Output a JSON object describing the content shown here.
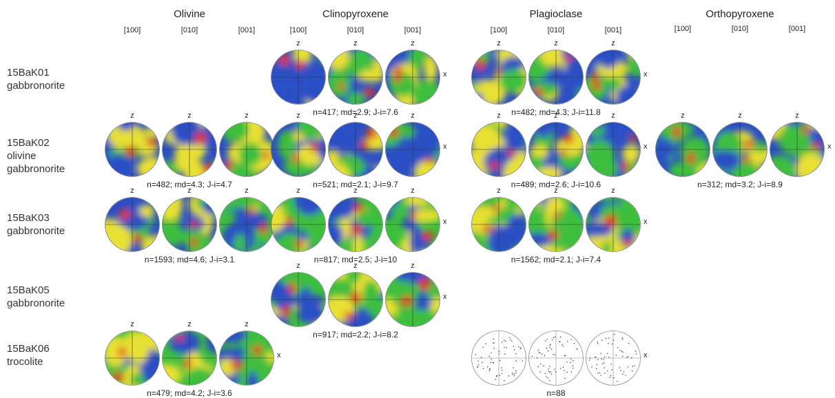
{
  "minerals": [
    {
      "id": "olivine",
      "name": "Olivine",
      "axes": [
        "[100]",
        "[010]",
        "[001]"
      ]
    },
    {
      "id": "clinopyroxene",
      "name": "Clinopyroxene",
      "axes": [
        "[100]",
        "[010]",
        "[001]"
      ]
    },
    {
      "id": "plagioclase",
      "name": "Plagioclase",
      "axes": [
        "[100]",
        "[010]",
        "[001]"
      ]
    },
    {
      "id": "orthopyroxene",
      "name": "Orthopyroxene",
      "axes": [
        "[100]",
        "[010]",
        "[001]"
      ]
    }
  ],
  "samples": [
    {
      "id": "15BaK01",
      "lines": [
        "15BaK01",
        "gabbronorite"
      ]
    },
    {
      "id": "15BaK02",
      "lines": [
        "15BaK02",
        "olivine",
        "gabbronorite"
      ]
    },
    {
      "id": "15BaK03",
      "lines": [
        "15BaK03",
        "gabbronorite"
      ]
    },
    {
      "id": "15BaK05",
      "lines": [
        "15BaK05",
        "gabbronorite"
      ]
    },
    {
      "id": "15BaK06",
      "lines": [
        "15BaK06",
        "trocolite"
      ]
    }
  ],
  "axis_marks": {
    "z": "z",
    "x": "x"
  },
  "chart_data": {
    "type": "pole-figure-grid",
    "cells": [
      {
        "sample": "15BaK01",
        "mineral": "Clinopyroxene",
        "stats": "n=417; md=2.9; J-i=7.6",
        "style": "density"
      },
      {
        "sample": "15BaK01",
        "mineral": "Plagioclase",
        "stats": "n=482; md=4.3; J-i=11.8",
        "style": "density"
      },
      {
        "sample": "15BaK02",
        "mineral": "Olivine",
        "stats": "n=482; md=4.3; J-i=4.7",
        "style": "density"
      },
      {
        "sample": "15BaK02",
        "mineral": "Clinopyroxene",
        "stats": "n=521; md=2.1; J-i=9.7",
        "style": "density"
      },
      {
        "sample": "15BaK02",
        "mineral": "Plagioclase",
        "stats": "n=489; md=2.6; J-i=10.6",
        "style": "density"
      },
      {
        "sample": "15BaK02",
        "mineral": "Orthopyroxene",
        "stats": "n=312; md=3.2; J-i=8.9",
        "style": "density"
      },
      {
        "sample": "15BaK03",
        "mineral": "Olivine",
        "stats": "n=1593; md=4.6; J-i=3.1",
        "style": "density"
      },
      {
        "sample": "15BaK03",
        "mineral": "Clinopyroxene",
        "stats": "n=817; md=2.5; J-i=10",
        "style": "density"
      },
      {
        "sample": "15BaK03",
        "mineral": "Plagioclase",
        "stats": "n=1562; md=2.1; J-i=7.4",
        "style": "density"
      },
      {
        "sample": "15BaK05",
        "mineral": "Clinopyroxene",
        "stats": "n=917; md=2.2; J-i=8.2",
        "style": "density"
      },
      {
        "sample": "15BaK06",
        "mineral": "Olivine",
        "stats": "n=479; md=4.2; J-i=3.6",
        "style": "density"
      },
      {
        "sample": "15BaK06",
        "mineral": "Plagioclase",
        "stats": "n=88",
        "style": "points"
      }
    ],
    "colormap": [
      "#2b4fc4",
      "#3dbf3d",
      "#e8e030",
      "#e03020"
    ]
  }
}
